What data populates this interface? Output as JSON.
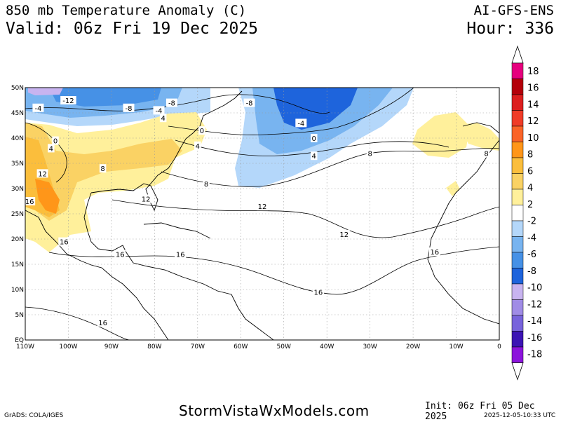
{
  "header": {
    "title": "850 mb Temperature Anomaly (C)",
    "valid": "Valid: 06z Fri 19 Dec 2025",
    "model": "AI-GFS-ENS",
    "hour": "Hour: 336"
  },
  "footer": {
    "grads": "GrADS: COLA/IGES",
    "site": "StormVistaWxModels.com",
    "init": "Init: 06z Fri 05 Dec 2025",
    "stamp": "2025-12-05-10:33 UTC"
  },
  "map": {
    "lon_range": [
      -110,
      0
    ],
    "lat_range": [
      0,
      50
    ],
    "lon_labels": [
      "110W",
      "100W",
      "90W",
      "80W",
      "70W",
      "60W",
      "50W",
      "40W",
      "30W",
      "20W",
      "10W",
      "0"
    ],
    "lat_labels": [
      "EQ",
      "5N",
      "10N",
      "15N",
      "20N",
      "25N",
      "30N",
      "35N",
      "40N",
      "45N",
      "50N"
    ],
    "contour_labels": [
      {
        "text": "-12",
        "lon": -100,
        "lat": 47.5
      },
      {
        "text": "-8",
        "lon": -86,
        "lat": 46
      },
      {
        "text": "-4",
        "lon": -107,
        "lat": 46
      },
      {
        "text": "-4",
        "lon": -79,
        "lat": 45.5
      },
      {
        "text": "-8",
        "lon": -76,
        "lat": 47
      },
      {
        "text": "-8",
        "lon": -58,
        "lat": 47
      },
      {
        "text": "-4",
        "lon": -46,
        "lat": 43
      },
      {
        "text": "0",
        "lon": -43,
        "lat": 40
      },
      {
        "text": "4",
        "lon": -43,
        "lat": 36.5
      },
      {
        "text": "0",
        "lon": -69,
        "lat": 41.5
      },
      {
        "text": "4",
        "lon": -78,
        "lat": 44
      },
      {
        "text": "4",
        "lon": -70,
        "lat": 38.5
      },
      {
        "text": "0",
        "lon": -103,
        "lat": 39.5
      },
      {
        "text": "4",
        "lon": -104,
        "lat": 38
      },
      {
        "text": "8",
        "lon": -92,
        "lat": 34
      },
      {
        "text": "12",
        "lon": -106,
        "lat": 33
      },
      {
        "text": "16",
        "lon": -109,
        "lat": 27.5
      },
      {
        "text": "8",
        "lon": -68,
        "lat": 31
      },
      {
        "text": "8",
        "lon": -30,
        "lat": 37
      },
      {
        "text": "8",
        "lon": -3,
        "lat": 37
      },
      {
        "text": "12",
        "lon": -82,
        "lat": 28
      },
      {
        "text": "12",
        "lon": -55,
        "lat": 26.5
      },
      {
        "text": "12",
        "lon": -36,
        "lat": 21
      },
      {
        "text": "16",
        "lon": -101,
        "lat": 19.5
      },
      {
        "text": "16",
        "lon": -88,
        "lat": 17
      },
      {
        "text": "16",
        "lon": -74,
        "lat": 17
      },
      {
        "text": "16",
        "lon": -15,
        "lat": 17.5
      },
      {
        "text": "16",
        "lon": -42,
        "lat": 9.5
      },
      {
        "text": "16",
        "lon": -92,
        "lat": 3.5
      }
    ]
  },
  "colorbar": {
    "labels": [
      "18",
      "16",
      "14",
      "12",
      "10",
      "8",
      "6",
      "4",
      "2",
      "-2",
      "-4",
      "-6",
      "-8",
      "-10",
      "-12",
      "-14",
      "-16",
      "-18"
    ],
    "colors": [
      "#e6007e",
      "#b4000a",
      "#dc1e1e",
      "#f03c28",
      "#fa6428",
      "#ff9619",
      "#fbbe3c",
      "#fad264",
      "#fff09b",
      "#ffffff",
      "#b4d7fa",
      "#78b4f0",
      "#4691e6",
      "#1e64dc",
      "#c8b4f0",
      "#a08ce6",
      "#7864dc",
      "#5a3cc8",
      "#3c14b4",
      "#2800a0",
      "#8c14dc"
    ],
    "interval_colors": [
      "#e6007e",
      "#b4000a",
      "#dc1e1e",
      "#f03c28",
      "#fa6428",
      "#ff9619",
      "#fbbe3c",
      "#fad264",
      "#fff09b",
      "#ffffff",
      "#b4d7fa",
      "#78b4f0",
      "#4691e6",
      "#1e64dc",
      "#c8b4f0",
      "#a08ce6",
      "#7864dc",
      "#3c14b4",
      "#8c14dc"
    ]
  }
}
